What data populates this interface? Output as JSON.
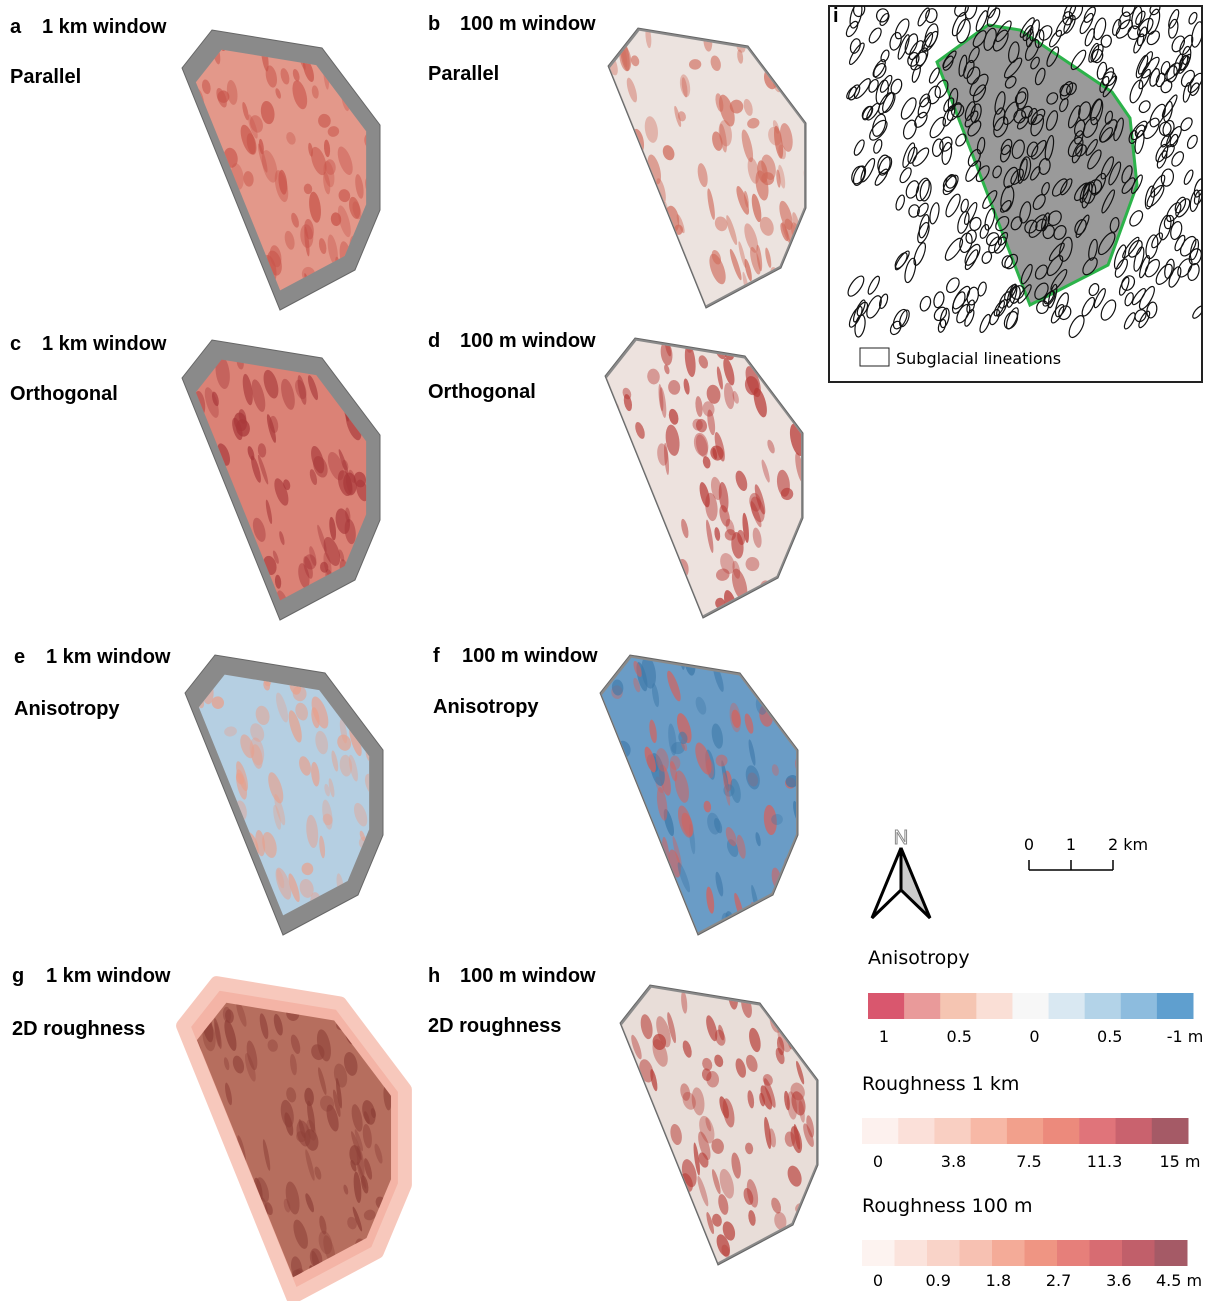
{
  "panels": [
    {
      "letter": "a",
      "window": "1 km window",
      "metric": "Parallel"
    },
    {
      "letter": "b",
      "window": "100 m window",
      "metric": "Parallel"
    },
    {
      "letter": "c",
      "window": "1 km window",
      "metric": "Orthogonal"
    },
    {
      "letter": "d",
      "window": "100 m window",
      "metric": "Orthogonal"
    },
    {
      "letter": "e",
      "window": "1 km window",
      "metric": "Anisotropy"
    },
    {
      "letter": "f",
      "window": "100 m window",
      "metric": "Anisotropy"
    },
    {
      "letter": "g",
      "window": "1 km window",
      "metric": "2D roughness"
    },
    {
      "letter": "h",
      "window": "100 m window",
      "metric": "2D roughness"
    }
  ],
  "inset": {
    "letter": "i",
    "legend": "Subglacial lineations"
  },
  "north_arrow": "N",
  "scale_bar": [
    "0",
    "1",
    "2 km"
  ],
  "legends": [
    {
      "title": "Anisotropy",
      "colors": [
        "#d9576e",
        "#e99a9a",
        "#f5c5b2",
        "#fadfd6",
        "#f7f7f7",
        "#d9e8f2",
        "#b3d3e8",
        "#8dbcde",
        "#5f9fcf"
      ],
      "labels": [
        "1",
        "0.5",
        "0",
        "0.5",
        "-1 m"
      ]
    },
    {
      "title": "Roughness 1 km",
      "colors": [
        "#fdf1ee",
        "#fbe0d9",
        "#f9cfc2",
        "#f7b8a6",
        "#f2a08c",
        "#ec8a7c",
        "#e0747a",
        "#c9626e",
        "#a55a66"
      ],
      "labels": [
        "0",
        "3.8",
        "7.5",
        "11.3",
        "15 m"
      ]
    },
    {
      "title": "Roughness 100 m",
      "colors": [
        "#fdf3f0",
        "#fbe3dc",
        "#f9d3c8",
        "#f7c1b2",
        "#f4ab98",
        "#ef9583",
        "#e67f7a",
        "#d76c72",
        "#c15f6a",
        "#a55a66"
      ],
      "labels": [
        "0",
        "0.9",
        "1.8",
        "2.7",
        "3.6",
        "4.5 m"
      ]
    }
  ]
}
